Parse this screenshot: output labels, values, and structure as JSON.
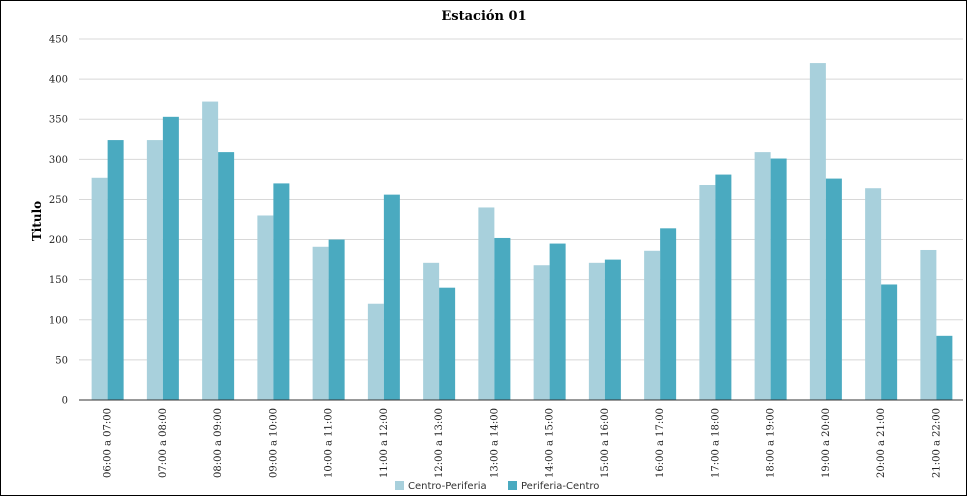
{
  "chart_data": {
    "type": "bar",
    "title": "Estación 01",
    "xlabel": "",
    "ylabel": "Titulo",
    "ylim": [
      0,
      450
    ],
    "yticks": [
      0,
      50,
      100,
      150,
      200,
      250,
      300,
      350,
      400,
      450
    ],
    "grid": true,
    "legend_position": "bottom",
    "categories": [
      "06:00 a 07:00",
      "07:00 a 08:00",
      "08:00 a 09:00",
      "09:00 a 10:00",
      "10:00 a 11:00",
      "11:00 a 12:00",
      "12:00 a 13:00",
      "13:00 a 14:00",
      "14:00 a 15:00",
      "15:00 a 16:00",
      "16:00 a 17:00",
      "17:00 a 18:00",
      "18:00 a 19:00",
      "19:00 a 20:00",
      "20:00 a 21:00",
      "21:00 a 22:00"
    ],
    "series": [
      {
        "name": "Centro-Periferia",
        "color": "#a8d0dc",
        "values": [
          277,
          324,
          372,
          230,
          191,
          120,
          171,
          240,
          168,
          171,
          186,
          268,
          309,
          420,
          264,
          187
        ]
      },
      {
        "name": "Periferia-Centro",
        "color": "#4aaac0",
        "values": [
          324,
          353,
          309,
          270,
          200,
          256,
          140,
          202,
          195,
          175,
          214,
          281,
          301,
          276,
          144,
          80
        ]
      }
    ]
  }
}
